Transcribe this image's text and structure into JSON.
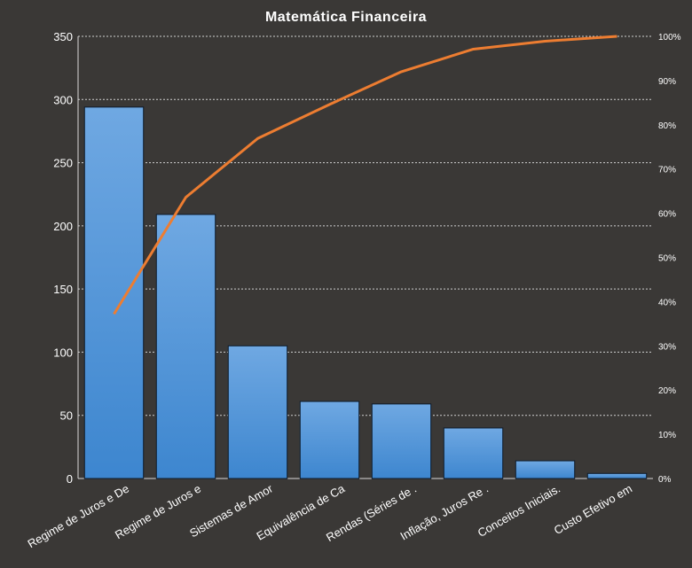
{
  "chart_data": {
    "type": "bar",
    "title": "Matemática Financeira",
    "categories": [
      "Regime de Juros e De",
      "Regime de Juros e",
      "Sistemas de Amor",
      "Equivalência de Ca",
      "Rendas (Séries de .",
      "Inflação, Juros Re .",
      "Conceitos Iniciais.",
      "Custo Efetivo em"
    ],
    "series": [
      {
        "type": "bar",
        "values": [
          294,
          209,
          105,
          61,
          59,
          40,
          14,
          4
        ]
      },
      {
        "type": "line",
        "axis": "secondary",
        "values": [
          37.2,
          63.6,
          76.9,
          84.6,
          92.0,
          97.1,
          98.9,
          100
        ]
      }
    ],
    "ylim": [
      0,
      350
    ],
    "yticks": [
      "0",
      "50",
      "100",
      "150",
      "200",
      "250",
      "300",
      "350"
    ],
    "y2lim": [
      0,
      100
    ],
    "y2ticks": [
      "0%",
      "10%",
      "20%",
      "30%",
      "40%",
      "50%",
      "60%",
      "70%",
      "80%",
      "90%",
      "100%"
    ],
    "grid": true,
    "colors": {
      "bar": "#4a8fd6",
      "bar_light": "#6aa6e0",
      "line": "#ed7d31",
      "background": "#3a3836",
      "grid": "#cfcfcf",
      "text": "#ffffff"
    }
  }
}
